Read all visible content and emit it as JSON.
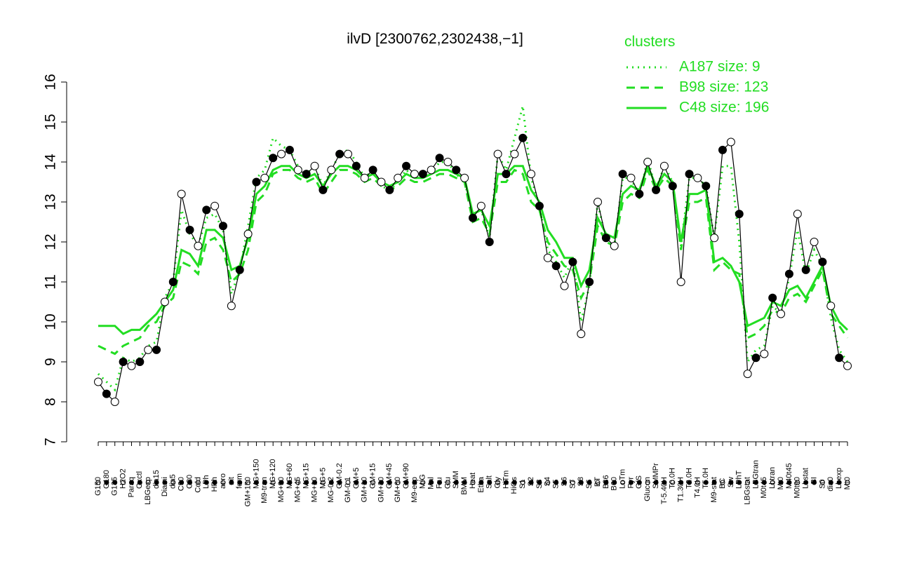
{
  "chart_data": {
    "type": "line",
    "title": "ilvD [2300762,2302438,−1]",
    "legend_title": "clusters",
    "categories": [
      "G150",
      "G180",
      "G135",
      "H2O2",
      "Paraq",
      "Oxctl",
      "LBGexp",
      "dia15",
      "Diami",
      "dia5",
      "C90",
      "C30",
      "Cold",
      "LPh",
      "HPh",
      "aero",
      "nit",
      "ferm",
      "GM+150",
      "MG+150",
      "M9-tran",
      "MG+120",
      "MG+90",
      "MG+60",
      "MG+45",
      "MG+15",
      "MG+10",
      "MG+5",
      "MG-0.2",
      "GM-0.2",
      "GM-0.1",
      "GM+5",
      "GM+10",
      "GM+15",
      "GM+30",
      "GM+45",
      "GM+60",
      "GM+90",
      "M9-exp",
      "M/G",
      "Mal",
      "Fru",
      "Glu",
      "SMM",
      "BMM",
      "Heat",
      "Etha",
      "Salt",
      "Gly",
      "HiTm",
      "HiOs",
      "S1",
      "S2",
      "S3",
      "S4",
      "S5",
      "S6",
      "S7",
      "S8",
      "S6",
      "BT",
      "B36",
      "B60",
      "LoTm",
      "Pyr",
      "G/S",
      "Glucon",
      "SMMPr",
      "T-5.40H",
      "T0.0H",
      "T1.30H",
      "T2.0H",
      "T4.0H",
      "T5.0H",
      "M9-stat",
      "BC",
      "Sw",
      "LPhT",
      "LBGstat",
      "LBGtran",
      "M0t45",
      "Lbtran",
      "Mt0",
      "M40t45",
      "M0t90",
      "Lbstat",
      "BI",
      "S0",
      "dia0",
      "Lbexp",
      "Mt0"
    ],
    "values": [
      8.5,
      8.2,
      8.0,
      9.0,
      8.9,
      9.0,
      9.3,
      9.3,
      10.5,
      11.0,
      13.2,
      12.3,
      11.9,
      12.8,
      12.9,
      12.4,
      10.4,
      11.3,
      12.2,
      13.5,
      13.6,
      14.1,
      14.2,
      14.3,
      13.8,
      13.7,
      13.9,
      13.3,
      13.8,
      14.2,
      14.2,
      13.9,
      13.6,
      13.8,
      13.5,
      13.3,
      13.6,
      13.9,
      13.7,
      13.7,
      13.8,
      14.1,
      14.0,
      13.8,
      13.6,
      12.6,
      12.9,
      12.0,
      14.2,
      13.7,
      14.2,
      14.6,
      13.7,
      12.9,
      11.6,
      11.4,
      10.9,
      11.5,
      9.7,
      11.0,
      13.0,
      12.1,
      11.9,
      13.7,
      13.6,
      13.2,
      14.0,
      13.3,
      13.9,
      13.4,
      11.0,
      13.7,
      13.6,
      13.4,
      12.1,
      14.3,
      14.5,
      12.7,
      8.7,
      9.1,
      9.2,
      10.6,
      10.2,
      11.2,
      12.7,
      11.3,
      12.0,
      11.5,
      10.4,
      9.1,
      8.9
    ],
    "color": "#000000",
    "series": [
      {
        "name": "A187 size: 9",
        "color": "#22dd22",
        "dash": "dotted",
        "values": [
          8.7,
          8.5,
          8.3,
          9.1,
          9.0,
          9.1,
          9.4,
          9.5,
          10.6,
          11.0,
          12.8,
          12.2,
          11.9,
          12.6,
          12.7,
          12.3,
          10.7,
          11.3,
          12.4,
          13.6,
          13.8,
          14.6,
          14.4,
          14.3,
          13.9,
          13.7,
          13.9,
          13.4,
          13.8,
          14.2,
          14.3,
          14.0,
          13.6,
          13.8,
          13.4,
          13.3,
          13.5,
          13.8,
          13.6,
          13.6,
          13.7,
          14.0,
          14.0,
          13.7,
          13.5,
          12.7,
          12.8,
          12.1,
          14.2,
          13.8,
          14.6,
          15.4,
          13.6,
          12.9,
          11.8,
          11.5,
          11.1,
          11.6,
          10.0,
          10.9,
          13.0,
          12.0,
          11.9,
          13.6,
          13.6,
          13.1,
          14.1,
          13.3,
          13.9,
          13.5,
          11.9,
          13.6,
          13.6,
          13.4,
          12.1,
          13.9,
          13.9,
          12.0,
          9.0,
          9.3,
          9.4,
          10.4,
          10.2,
          11.1,
          12.3,
          11.2,
          11.8,
          11.4,
          10.1,
          9.3,
          9.0
        ]
      },
      {
        "name": "B98 size: 123",
        "color": "#22dd22",
        "dash": "dashed",
        "values": [
          9.4,
          9.3,
          9.2,
          9.4,
          9.5,
          9.6,
          9.9,
          10.0,
          10.4,
          10.6,
          11.5,
          11.4,
          11.2,
          12.0,
          12.1,
          11.8,
          11.0,
          11.2,
          11.8,
          13.0,
          13.2,
          13.7,
          13.8,
          13.8,
          13.6,
          13.5,
          13.6,
          13.2,
          13.5,
          13.8,
          13.8,
          13.7,
          13.5,
          13.6,
          13.4,
          13.3,
          13.4,
          13.6,
          13.5,
          13.5,
          13.6,
          13.7,
          13.7,
          13.6,
          13.5,
          12.5,
          12.6,
          12.2,
          13.5,
          13.5,
          13.8,
          13.7,
          13.0,
          12.8,
          12.0,
          11.7,
          11.4,
          11.3,
          10.6,
          11.0,
          12.4,
          12.0,
          11.9,
          13.0,
          13.2,
          13.1,
          13.8,
          13.3,
          13.6,
          13.4,
          11.8,
          13.0,
          13.0,
          13.1,
          11.3,
          11.5,
          11.3,
          11.2,
          9.6,
          9.7,
          9.9,
          10.3,
          10.2,
          10.6,
          10.7,
          10.5,
          10.9,
          11.3,
          10.2,
          9.9,
          9.6
        ]
      },
      {
        "name": "C48 size: 196",
        "color": "#22dd22",
        "dash": "solid",
        "values": [
          9.9,
          9.9,
          9.9,
          9.7,
          9.8,
          9.8,
          10.0,
          10.2,
          10.5,
          10.8,
          11.8,
          11.7,
          11.4,
          12.3,
          12.3,
          12.1,
          11.3,
          11.4,
          12.1,
          13.2,
          13.4,
          13.8,
          13.9,
          13.9,
          13.7,
          13.6,
          13.7,
          13.4,
          13.7,
          13.9,
          13.9,
          13.8,
          13.6,
          13.7,
          13.5,
          13.4,
          13.5,
          13.7,
          13.6,
          13.6,
          13.7,
          13.8,
          13.8,
          13.7,
          13.6,
          12.7,
          12.8,
          12.4,
          13.7,
          13.7,
          13.9,
          13.9,
          13.3,
          13.0,
          12.3,
          12.0,
          11.6,
          11.6,
          10.9,
          11.3,
          12.6,
          12.2,
          12.1,
          13.2,
          13.4,
          13.3,
          13.9,
          13.4,
          13.7,
          13.5,
          12.0,
          13.2,
          13.2,
          13.3,
          11.5,
          11.6,
          11.4,
          11.0,
          9.9,
          10.0,
          10.1,
          10.5,
          10.4,
          10.8,
          10.9,
          10.6,
          11.0,
          11.4,
          10.4,
          10.0,
          9.8
        ]
      }
    ],
    "ylim": [
      7,
      16
    ],
    "yticks": [
      7,
      8,
      9,
      10,
      11,
      12,
      13,
      14,
      15,
      16
    ]
  }
}
